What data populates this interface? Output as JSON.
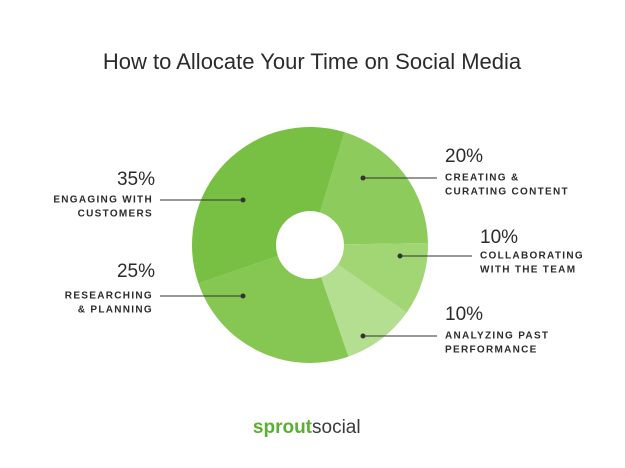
{
  "chart_data": {
    "type": "donut",
    "title": "How to Allocate Your Time on Social Media",
    "categories": [
      [
        "CREATING &",
        "CURATING CONTENT"
      ],
      [
        "COLLABORATING",
        "WITH THE TEAM"
      ],
      [
        "ANALYZING PAST",
        "PERFORMANCE"
      ],
      [
        "RESEARCHING",
        "& PLANNING"
      ],
      [
        "ENGAGING WITH",
        "CUSTOMERS"
      ]
    ],
    "values": [
      20,
      10,
      10,
      25,
      35
    ],
    "value_labels": [
      "20%",
      "10%",
      "10%",
      "25%",
      "35%"
    ],
    "colors": [
      "#8ecb5d",
      "#a2d573",
      "#b4de90",
      "#86c653",
      "#78c043"
    ]
  },
  "footer": [
    "sprout",
    "social"
  ]
}
